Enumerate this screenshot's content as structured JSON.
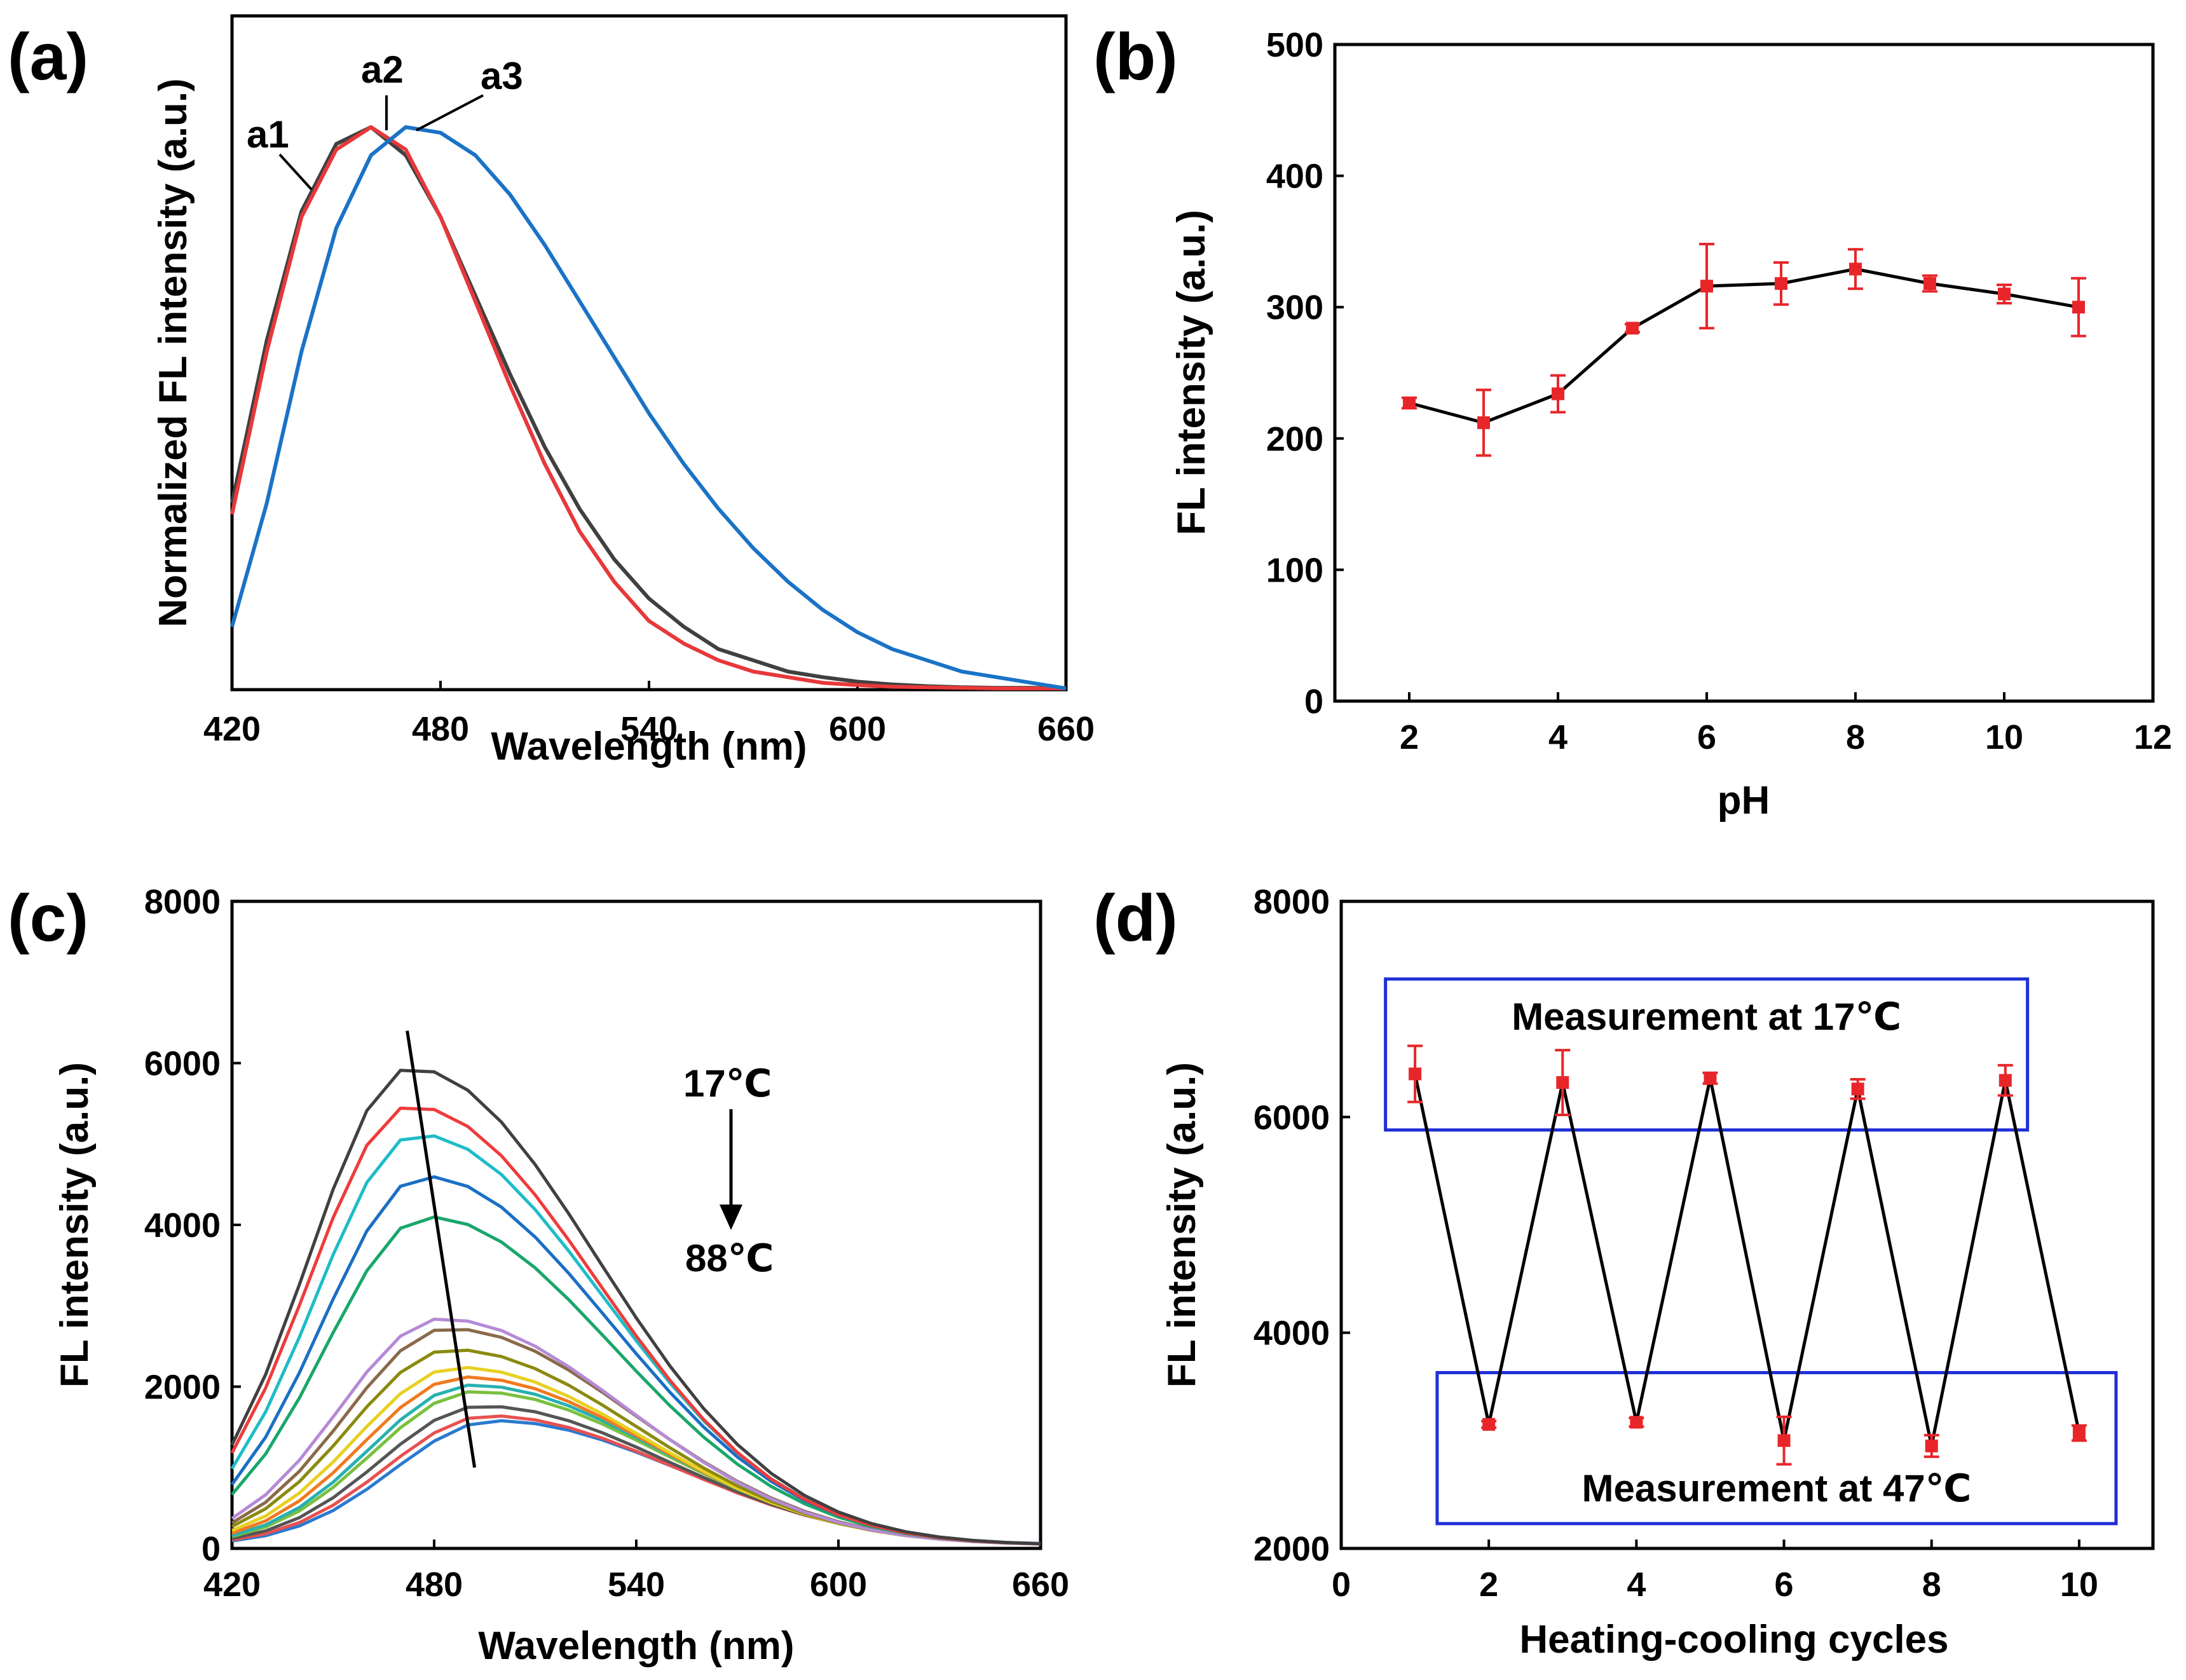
{
  "chart_data": [
    {
      "panel": "(a)",
      "type": "line",
      "xlabel": "Wavelength (nm)",
      "ylabel": "Normalized FL intensity (a.u.)",
      "xlim": [
        420,
        660
      ],
      "ylim": [
        0,
        1.0
      ],
      "xticks": [
        "420",
        "480",
        "540",
        "600",
        "660"
      ],
      "yticks": [],
      "x": [
        420,
        430,
        440,
        450,
        460,
        470,
        480,
        490,
        500,
        510,
        520,
        530,
        540,
        550,
        560,
        570,
        580,
        590,
        600,
        610,
        620,
        630,
        640,
        650,
        660
      ],
      "series": [
        {
          "name": "a1",
          "color": "#404040",
          "values": [
            0.33,
            0.62,
            0.85,
            0.97,
            1.0,
            0.95,
            0.84,
            0.7,
            0.56,
            0.43,
            0.32,
            0.23,
            0.16,
            0.11,
            0.07,
            0.05,
            0.03,
            0.02,
            0.012,
            0.007,
            0.004,
            0.002,
            0.001,
            0.001,
            0.0
          ]
        },
        {
          "name": "a2",
          "color": "#e8383a",
          "values": [
            0.31,
            0.6,
            0.84,
            0.96,
            1.0,
            0.96,
            0.84,
            0.69,
            0.54,
            0.4,
            0.28,
            0.19,
            0.12,
            0.08,
            0.05,
            0.03,
            0.02,
            0.01,
            0.006,
            0.003,
            0.002,
            0.001,
            0.0,
            0.0,
            0.0
          ]
        },
        {
          "name": "a3",
          "color": "#1a73c6",
          "values": [
            0.11,
            0.33,
            0.6,
            0.82,
            0.95,
            1.0,
            0.99,
            0.95,
            0.88,
            0.79,
            0.69,
            0.59,
            0.49,
            0.4,
            0.32,
            0.25,
            0.19,
            0.14,
            0.1,
            0.07,
            0.05,
            0.03,
            0.02,
            0.01,
            0.0
          ]
        }
      ],
      "annotations": [
        "a1",
        "a2",
        "a3"
      ]
    },
    {
      "panel": "(b)",
      "type": "line",
      "xlabel": "pH",
      "ylabel": "FL intensity (a.u.)",
      "xlim": [
        1,
        12
      ],
      "ylim": [
        0,
        500
      ],
      "xticks": [
        "2",
        "4",
        "6",
        "8",
        "10",
        "12"
      ],
      "yticks": [
        "0",
        "100",
        "200",
        "300",
        "400",
        "500"
      ],
      "x": [
        2,
        3,
        4,
        5,
        6,
        7,
        8,
        9,
        10,
        11
      ],
      "series": [
        {
          "name": "FL intensity",
          "color": "#e8262a",
          "line_color": "#000000",
          "values": [
            227,
            212,
            234,
            284,
            316,
            318,
            329,
            318,
            310,
            300
          ],
          "errors": [
            4,
            25,
            14,
            3,
            32,
            16,
            15,
            6,
            7,
            22
          ]
        }
      ]
    },
    {
      "panel": "(c)",
      "type": "line",
      "xlabel": "Wavelength (nm)",
      "ylabel": "FL intensity (a.u.)",
      "xlim": [
        420,
        660
      ],
      "ylim": [
        0,
        8000
      ],
      "xticks": [
        "420",
        "480",
        "540",
        "600",
        "660"
      ],
      "yticks": [
        "0",
        "2000",
        "4000",
        "6000",
        "8000"
      ],
      "peak_shape": {
        "x": [
          420,
          430,
          440,
          450,
          460,
          470,
          480,
          490,
          500,
          510,
          520,
          530,
          540,
          550,
          560,
          570,
          580,
          590,
          600,
          610,
          620,
          630,
          640,
          650,
          660
        ],
        "note": "normalized profile applied to each series peak"
      },
      "series": [
        {
          "name": "17",
          "color": "#404040",
          "peak": 5900,
          "peak_nm": 473
        },
        {
          "name": "",
          "color": "#ef3b3b",
          "peak": 5430,
          "peak_nm": 473
        },
        {
          "name": "",
          "color": "#1ebcc8",
          "peak": 5080,
          "peak_nm": 475
        },
        {
          "name": "",
          "color": "#1a6fc4",
          "peak": 4560,
          "peak_nm": 477
        },
        {
          "name": "",
          "color": "#1aa66a",
          "peak": 4060,
          "peak_nm": 478
        },
        {
          "name": "",
          "color": "#b58ad6",
          "peak": 2800,
          "peak_nm": 482
        },
        {
          "name": "",
          "color": "#8a6a4a",
          "peak": 2680,
          "peak_nm": 484
        },
        {
          "name": "",
          "color": "#8a8a10",
          "peak": 2420,
          "peak_nm": 485
        },
        {
          "name": "",
          "color": "#e8d020",
          "peak": 2200,
          "peak_nm": 487
        },
        {
          "name": "",
          "color": "#f07a20",
          "peak": 2080,
          "peak_nm": 489
        },
        {
          "name": "",
          "color": "#28b0b0",
          "peak": 1980,
          "peak_nm": 491
        },
        {
          "name": "",
          "color": "#7ac040",
          "peak": 1900,
          "peak_nm": 492
        },
        {
          "name": "",
          "color": "#555555",
          "peak": 1720,
          "peak_nm": 494
        },
        {
          "name": "",
          "color": "#e85050",
          "peak": 1600,
          "peak_nm": 496
        },
        {
          "name": "88",
          "color": "#2a7ad0",
          "peak": 1540,
          "peak_nm": 498
        }
      ],
      "arrow_line": {
        "x": [
          472,
          492
        ],
        "y": [
          6400,
          1000
        ]
      },
      "annotations": {
        "top": "17℃",
        "bottom": "88℃"
      }
    },
    {
      "panel": "(d)",
      "type": "line",
      "xlabel": "Heating-cooling cycles",
      "ylabel": "FL intensity (a.u.)",
      "xlim": [
        0,
        11
      ],
      "ylim": [
        2000,
        8000
      ],
      "xticks": [
        "0",
        "2",
        "4",
        "6",
        "8",
        "10"
      ],
      "yticks": [
        "2000",
        "4000",
        "6000",
        "8000"
      ],
      "x": [
        1,
        2,
        3,
        4,
        5,
        6,
        7,
        8,
        9,
        10
      ],
      "series": [
        {
          "name": "FL intensity",
          "color": "#e8262a",
          "line_color": "#000000",
          "values": [
            6400,
            3150,
            6320,
            3170,
            6360,
            3000,
            6260,
            2950,
            6340,
            3070
          ],
          "errors": [
            260,
            30,
            300,
            40,
            50,
            220,
            90,
            100,
            140,
            70
          ]
        }
      ],
      "boxes": [
        {
          "label": "Measurement at 17℃",
          "x": [
            0.6,
            9.3
          ],
          "y": [
            5880,
            7280
          ],
          "color": "#1f2fd6"
        },
        {
          "label": "Measurement at 47℃",
          "x": [
            1.3,
            10.5
          ],
          "y": [
            2230,
            3630
          ],
          "color": "#1f2fd6"
        }
      ]
    }
  ]
}
